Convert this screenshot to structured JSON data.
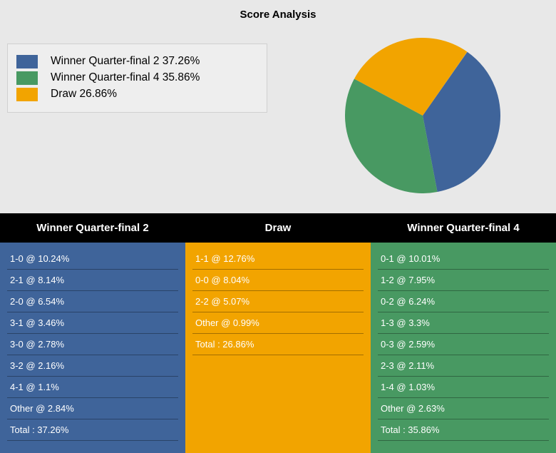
{
  "title": "Score Analysis",
  "colors": {
    "background": "#e8e8e8",
    "legend_bg": "#eeeeee",
    "legend_border": "#d0d0d0",
    "header_bg": "#000000",
    "header_fg": "#ffffff",
    "row_fg": "#ffffff",
    "row_divider": "rgba(0,0,0,0.32)"
  },
  "pie": {
    "type": "pie",
    "diameter": 218,
    "start_angle": -55,
    "slices": [
      {
        "label": "Winner Quarter-final 2",
        "pct": 37.26,
        "color": "#3f649a"
      },
      {
        "label": "Winner Quarter-final 4",
        "pct": 35.86,
        "color": "#489962"
      },
      {
        "label": "Draw",
        "pct": 26.86,
        "color": "#f2a400"
      }
    ]
  },
  "legend": [
    {
      "swatch": "#3f649a",
      "label": "Winner Quarter-final 2 37.26%"
    },
    {
      "swatch": "#489962",
      "label": "Winner Quarter-final 4 35.86%"
    },
    {
      "swatch": "#f2a400",
      "label": "Draw 26.86%"
    }
  ],
  "columns": [
    {
      "header": "Winner Quarter-final 2",
      "bg": "#3f649a",
      "rows": [
        "1-0 @ 10.24%",
        "2-1 @ 8.14%",
        "2-0 @ 6.54%",
        "3-1 @ 3.46%",
        "3-0 @ 2.78%",
        "3-2 @ 2.16%",
        "4-1 @ 1.1%",
        "Other @ 2.84%",
        "Total : 37.26%"
      ]
    },
    {
      "header": "Draw",
      "bg": "#f2a400",
      "rows": [
        "1-1 @ 12.76%",
        "0-0 @ 8.04%",
        "2-2 @ 5.07%",
        "Other @ 0.99%",
        "Total : 26.86%"
      ]
    },
    {
      "header": "Winner Quarter-final 4",
      "bg": "#489962",
      "rows": [
        "0-1 @ 10.01%",
        "1-2 @ 7.95%",
        "0-2 @ 6.24%",
        "1-3 @ 3.3%",
        "0-3 @ 2.59%",
        "2-3 @ 2.11%",
        "1-4 @ 1.03%",
        "Other @ 2.63%",
        "Total : 35.86%"
      ]
    }
  ]
}
